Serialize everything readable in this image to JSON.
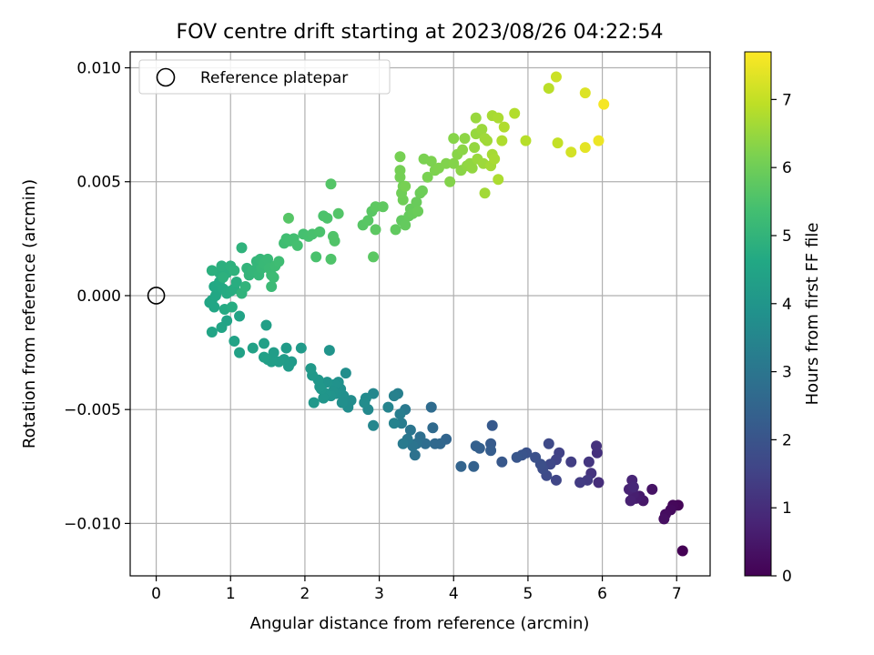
{
  "chart_data": {
    "type": "scatter",
    "title": "FOV centre drift starting at 2023/08/26 04:22:54",
    "xlabel": "Angular distance from reference (arcmin)",
    "ylabel": "Rotation from reference (arcmin)",
    "xlim": [
      -0.35,
      7.45
    ],
    "ylim": [
      -0.0123,
      0.0107
    ],
    "xticks": [
      0,
      1,
      2,
      3,
      4,
      5,
      6,
      7
    ],
    "xtick_labels": [
      "0",
      "1",
      "2",
      "3",
      "4",
      "5",
      "6",
      "7"
    ],
    "yticks": [
      -0.01,
      -0.005,
      0.0,
      0.005,
      0.01
    ],
    "ytick_labels": [
      "−0.010",
      "−0.005",
      "0.000",
      "0.005",
      "0.010"
    ],
    "grid": true,
    "legend": {
      "position": "upper-left",
      "entries": [
        "Reference platepar"
      ]
    },
    "colorbar": {
      "label": "Hours from first FF file",
      "colormap": "viridis",
      "range": [
        0,
        7.7
      ],
      "ticks": [
        0,
        1,
        2,
        3,
        4,
        5,
        6,
        7
      ],
      "tick_labels": [
        "0",
        "1",
        "2",
        "3",
        "4",
        "5",
        "6",
        "7"
      ]
    },
    "reference_point": {
      "x": 0,
      "y": 0
    },
    "points_columns": [
      "x",
      "y",
      "hours"
    ],
    "points": [
      [
        7.08,
        -0.0112,
        0.0
      ],
      [
        7.02,
        -0.0092,
        0.1
      ],
      [
        6.95,
        -0.0092,
        0.15
      ],
      [
        6.92,
        -0.0094,
        0.2
      ],
      [
        6.85,
        -0.0096,
        0.25
      ],
      [
        6.83,
        -0.0098,
        0.3
      ],
      [
        6.67,
        -0.0085,
        0.4
      ],
      [
        6.55,
        -0.009,
        0.5
      ],
      [
        6.5,
        -0.0088,
        0.55
      ],
      [
        6.45,
        -0.0089,
        0.6
      ],
      [
        6.42,
        -0.0087,
        0.65
      ],
      [
        6.38,
        -0.009,
        0.7
      ],
      [
        6.36,
        -0.0085,
        0.75
      ],
      [
        6.4,
        -0.0081,
        0.8
      ],
      [
        6.42,
        -0.0084,
        0.85
      ],
      [
        5.95,
        -0.0082,
        1.0
      ],
      [
        5.93,
        -0.0069,
        1.05
      ],
      [
        5.92,
        -0.0066,
        1.1
      ],
      [
        5.85,
        -0.0078,
        1.15
      ],
      [
        5.82,
        -0.0073,
        1.2
      ],
      [
        5.8,
        -0.0081,
        1.3
      ],
      [
        5.7,
        -0.0082,
        1.35
      ],
      [
        5.58,
        -0.0073,
        1.4
      ],
      [
        5.42,
        -0.0069,
        1.5
      ],
      [
        5.38,
        -0.0072,
        1.55
      ],
      [
        5.38,
        -0.0081,
        1.6
      ],
      [
        5.3,
        -0.0074,
        1.65
      ],
      [
        5.28,
        -0.0065,
        1.7
      ],
      [
        5.25,
        -0.0079,
        1.75
      ],
      [
        5.2,
        -0.0076,
        1.8
      ],
      [
        5.17,
        -0.0074,
        1.85
      ],
      [
        5.1,
        -0.0071,
        1.9
      ],
      [
        4.98,
        -0.0069,
        1.95
      ],
      [
        4.92,
        -0.007,
        2.0
      ],
      [
        4.85,
        -0.0071,
        2.05
      ],
      [
        4.65,
        -0.0073,
        2.1
      ],
      [
        4.52,
        -0.0057,
        2.15
      ],
      [
        4.5,
        -0.0065,
        2.2
      ],
      [
        4.5,
        -0.0068,
        2.25
      ],
      [
        4.35,
        -0.0067,
        2.3
      ],
      [
        4.3,
        -0.0066,
        2.35
      ],
      [
        4.27,
        -0.0075,
        2.4
      ],
      [
        4.1,
        -0.0075,
        2.45
      ],
      [
        3.9,
        -0.0063,
        2.5
      ],
      [
        3.82,
        -0.0065,
        2.55
      ],
      [
        3.75,
        -0.0065,
        2.6
      ],
      [
        3.72,
        -0.0058,
        2.65
      ],
      [
        3.7,
        -0.0049,
        2.7
      ],
      [
        3.62,
        -0.0065,
        2.75
      ],
      [
        3.55,
        -0.0062,
        2.8
      ],
      [
        3.5,
        -0.0065,
        2.85
      ],
      [
        3.48,
        -0.007,
        2.9
      ],
      [
        3.45,
        -0.0066,
        2.95
      ],
      [
        3.42,
        -0.0059,
        3.0
      ],
      [
        3.38,
        -0.0063,
        3.05
      ],
      [
        3.35,
        -0.005,
        3.1
      ],
      [
        3.32,
        -0.0065,
        3.15
      ],
      [
        3.3,
        -0.0056,
        3.2
      ],
      [
        3.28,
        -0.0052,
        3.25
      ],
      [
        3.25,
        -0.0043,
        3.3
      ],
      [
        3.2,
        -0.0044,
        3.35
      ],
      [
        3.2,
        -0.0056,
        3.4
      ],
      [
        3.12,
        -0.0049,
        3.45
      ],
      [
        2.92,
        -0.0057,
        3.5
      ],
      [
        2.92,
        -0.0043,
        3.55
      ],
      [
        2.85,
        -0.005,
        3.6
      ],
      [
        2.82,
        -0.0045,
        3.65
      ],
      [
        2.8,
        -0.0047,
        3.7
      ],
      [
        2.62,
        -0.0046,
        3.72
      ],
      [
        2.58,
        -0.0049,
        3.74
      ],
      [
        2.55,
        -0.0034,
        3.76
      ],
      [
        2.52,
        -0.0044,
        3.78
      ],
      [
        2.5,
        -0.0047,
        3.8
      ],
      [
        2.48,
        -0.0041,
        3.82
      ],
      [
        2.45,
        -0.0038,
        3.84
      ],
      [
        2.42,
        -0.0043,
        3.86
      ],
      [
        2.4,
        -0.0039,
        3.88
      ],
      [
        2.38,
        -0.0042,
        3.9
      ],
      [
        2.35,
        -0.0044,
        3.92
      ],
      [
        2.33,
        -0.0024,
        3.94
      ],
      [
        2.3,
        -0.0038,
        3.96
      ],
      [
        2.28,
        -0.0043,
        3.98
      ],
      [
        2.25,
        -0.0045,
        4.0
      ],
      [
        2.22,
        -0.0041,
        4.02
      ],
      [
        2.2,
        -0.004,
        4.04
      ],
      [
        2.18,
        -0.0037,
        4.06
      ],
      [
        2.12,
        -0.0047,
        4.08
      ],
      [
        2.1,
        -0.0035,
        4.1
      ],
      [
        2.08,
        -0.0032,
        4.12
      ],
      [
        1.95,
        -0.0023,
        4.14
      ],
      [
        1.82,
        -0.0029,
        4.16
      ],
      [
        1.78,
        -0.0031,
        4.18
      ],
      [
        1.75,
        -0.0023,
        4.2
      ],
      [
        1.72,
        -0.0028,
        4.22
      ],
      [
        1.65,
        -0.0029,
        4.24
      ],
      [
        1.58,
        -0.0025,
        4.26
      ],
      [
        1.55,
        -0.0029,
        4.28
      ],
      [
        1.5,
        -0.0028,
        4.3
      ],
      [
        1.48,
        -0.0013,
        4.32
      ],
      [
        1.45,
        -0.0021,
        4.34
      ],
      [
        1.45,
        -0.0027,
        4.36
      ],
      [
        1.3,
        -0.0023,
        4.38
      ],
      [
        1.12,
        -0.0025,
        4.4
      ],
      [
        1.05,
        -0.002,
        4.42
      ],
      [
        1.12,
        -0.0009,
        4.44
      ],
      [
        0.95,
        -0.0011,
        4.46
      ],
      [
        0.88,
        -0.0014,
        4.48
      ],
      [
        0.75,
        -0.0016,
        4.5
      ],
      [
        0.72,
        -0.0003,
        4.52
      ],
      [
        0.75,
        -0.0002,
        4.54
      ],
      [
        0.78,
        -0.0005,
        4.56
      ],
      [
        0.8,
        0.0,
        4.58
      ],
      [
        0.82,
        0.0002,
        4.6
      ],
      [
        0.78,
        0.0004,
        4.62
      ],
      [
        0.85,
        0.0006,
        4.64
      ],
      [
        0.9,
        0.0003,
        4.66
      ],
      [
        0.92,
        -0.0006,
        4.68
      ],
      [
        0.95,
        0.0001,
        4.7
      ],
      [
        1.0,
        0.0002,
        4.72
      ],
      [
        1.02,
        -0.0005,
        4.74
      ],
      [
        1.05,
        0.0003,
        4.76
      ],
      [
        1.08,
        0.0006,
        4.78
      ],
      [
        0.85,
        0.001,
        4.8
      ],
      [
        0.95,
        0.001,
        4.82
      ],
      [
        0.75,
        0.0011,
        4.84
      ],
      [
        0.88,
        0.0013,
        4.86
      ],
      [
        0.9,
        0.0008,
        4.88
      ],
      [
        1.0,
        0.0013,
        4.9
      ],
      [
        1.05,
        0.0011,
        4.92
      ],
      [
        1.15,
        0.0021,
        4.94
      ],
      [
        1.15,
        0.0001,
        4.96
      ],
      [
        1.2,
        0.0004,
        4.98
      ],
      [
        1.22,
        0.0012,
        5.0
      ],
      [
        1.25,
        0.0009,
        5.02
      ],
      [
        1.3,
        0.0011,
        5.04
      ],
      [
        1.35,
        0.0015,
        5.06
      ],
      [
        1.38,
        0.0009,
        5.08
      ],
      [
        1.4,
        0.0016,
        5.1
      ],
      [
        1.42,
        0.0012,
        5.12
      ],
      [
        1.45,
        0.0014,
        5.14
      ],
      [
        1.5,
        0.0016,
        5.16
      ],
      [
        1.52,
        0.0012,
        5.18
      ],
      [
        1.55,
        0.0004,
        5.2
      ],
      [
        1.55,
        0.0009,
        5.22
      ],
      [
        1.58,
        0.0008,
        5.24
      ],
      [
        1.6,
        0.0013,
        5.26
      ],
      [
        1.65,
        0.0015,
        5.28
      ],
      [
        1.72,
        0.0023,
        5.3
      ],
      [
        1.75,
        0.0025,
        5.32
      ],
      [
        1.8,
        0.0024,
        5.34
      ],
      [
        1.85,
        0.0025,
        5.36
      ],
      [
        1.9,
        0.0022,
        5.38
      ],
      [
        1.98,
        0.0027,
        5.4
      ],
      [
        2.05,
        0.0026,
        5.42
      ],
      [
        2.1,
        0.0027,
        5.44
      ],
      [
        2.15,
        0.0017,
        5.46
      ],
      [
        2.2,
        0.0028,
        5.48
      ],
      [
        2.25,
        0.0035,
        5.5
      ],
      [
        2.3,
        0.0034,
        5.52
      ],
      [
        2.35,
        0.0016,
        5.54
      ],
      [
        2.38,
        0.0026,
        5.56
      ],
      [
        2.4,
        0.0024,
        5.58
      ],
      [
        2.45,
        0.0036,
        5.6
      ],
      [
        2.35,
        0.0049,
        5.62
      ],
      [
        1.78,
        0.0034,
        5.64
      ],
      [
        2.78,
        0.0031,
        5.66
      ],
      [
        2.85,
        0.0033,
        5.68
      ],
      [
        2.9,
        0.0037,
        5.7
      ],
      [
        2.92,
        0.0017,
        5.72
      ],
      [
        2.95,
        0.0029,
        5.74
      ],
      [
        2.95,
        0.0039,
        5.76
      ],
      [
        3.05,
        0.0039,
        5.78
      ],
      [
        3.22,
        0.0029,
        5.8
      ],
      [
        3.3,
        0.0033,
        5.82
      ],
      [
        3.35,
        0.0031,
        5.84
      ],
      [
        3.4,
        0.0035,
        5.86
      ],
      [
        3.42,
        0.0038,
        5.88
      ],
      [
        3.45,
        0.0036,
        5.9
      ],
      [
        3.5,
        0.0041,
        5.92
      ],
      [
        3.52,
        0.0037,
        5.94
      ],
      [
        3.55,
        0.0045,
        5.96
      ],
      [
        3.58,
        0.0046,
        5.98
      ],
      [
        3.32,
        0.0042,
        6.0
      ],
      [
        3.3,
        0.0045,
        6.02
      ],
      [
        3.32,
        0.0048,
        6.04
      ],
      [
        3.28,
        0.0052,
        6.06
      ],
      [
        3.28,
        0.0055,
        6.08
      ],
      [
        3.28,
        0.0061,
        6.1
      ],
      [
        3.35,
        0.0048,
        6.12
      ],
      [
        3.65,
        0.0052,
        6.14
      ],
      [
        3.6,
        0.006,
        6.16
      ],
      [
        3.7,
        0.0059,
        6.18
      ],
      [
        3.75,
        0.0055,
        6.2
      ],
      [
        3.8,
        0.0056,
        6.22
      ],
      [
        3.9,
        0.0058,
        6.24
      ],
      [
        3.95,
        0.005,
        6.26
      ],
      [
        4.0,
        0.0058,
        6.28
      ],
      [
        4.0,
        0.0069,
        6.3
      ],
      [
        4.05,
        0.0062,
        6.32
      ],
      [
        4.1,
        0.0055,
        6.34
      ],
      [
        4.12,
        0.0064,
        6.36
      ],
      [
        4.15,
        0.0069,
        6.38
      ],
      [
        4.18,
        0.0057,
        6.4
      ],
      [
        4.22,
        0.0058,
        6.42
      ],
      [
        4.25,
        0.0056,
        6.44
      ],
      [
        4.28,
        0.0065,
        6.46
      ],
      [
        4.3,
        0.0071,
        6.48
      ],
      [
        4.3,
        0.0078,
        6.5
      ],
      [
        4.32,
        0.006,
        6.52
      ],
      [
        4.38,
        0.0073,
        6.54
      ],
      [
        4.4,
        0.0058,
        6.56
      ],
      [
        4.42,
        0.0069,
        6.58
      ],
      [
        4.45,
        0.0068,
        6.6
      ],
      [
        4.42,
        0.0045,
        6.62
      ],
      [
        4.5,
        0.0057,
        6.64
      ],
      [
        4.52,
        0.0062,
        6.66
      ],
      [
        4.52,
        0.0079,
        6.68
      ],
      [
        4.55,
        0.006,
        6.7
      ],
      [
        4.6,
        0.0078,
        6.72
      ],
      [
        4.6,
        0.0051,
        6.74
      ],
      [
        4.65,
        0.0068,
        6.76
      ],
      [
        4.68,
        0.0074,
        6.78
      ],
      [
        4.82,
        0.008,
        6.8
      ],
      [
        4.97,
        0.0068,
        6.85
      ],
      [
        5.28,
        0.0091,
        6.9
      ],
      [
        5.4,
        0.0067,
        7.0
      ],
      [
        5.38,
        0.0096,
        7.1
      ],
      [
        5.58,
        0.0063,
        7.2
      ],
      [
        5.77,
        0.0089,
        7.3
      ],
      [
        5.77,
        0.0065,
        7.4
      ],
      [
        5.95,
        0.0068,
        7.5
      ],
      [
        6.02,
        0.0084,
        7.6
      ]
    ]
  }
}
